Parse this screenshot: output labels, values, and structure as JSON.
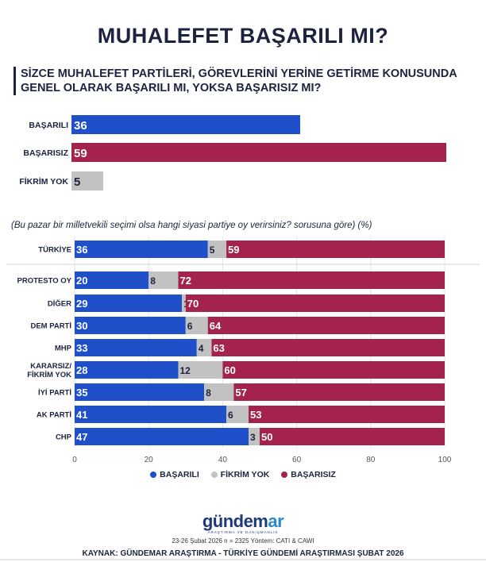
{
  "title": "MUHALEFET BAŞARILI MI?",
  "question": "SİZCE MUHALEFET PARTİLERİ, GÖREVLERİNİ YERİNE GETİRME KONUSUNDA GENEL OLARAK BAŞARILI MI, YOKSA BAŞARISIZ MI?",
  "subtitle": "(Bu pazar bir milletvekili seçimi olsa hangi siyasi partiye oy verirsiniz? sorusuna göre) (%)",
  "colors": {
    "basarili": "#1f4fc9",
    "fikrim_yok": "#c2c2c2",
    "basarisiz": "#a3234c",
    "text": "#1c2340"
  },
  "chart_data": [
    {
      "type": "bar",
      "orientation": "horizontal",
      "categories": [
        "BAŞARILI",
        "BAŞARISIZ",
        "FİKRİM YOK"
      ],
      "values": [
        36,
        59,
        5
      ],
      "xlim": [
        0,
        59
      ]
    },
    {
      "type": "bar",
      "orientation": "horizontal",
      "stacked": true,
      "categories": [
        "TÜRKİYE",
        "PROTESTO OY",
        "DİĞER",
        "DEM PARTİ",
        "MHP",
        "KARARSIZ/ FİKRİM YOK",
        "İYİ PARTİ",
        "AK PARTİ",
        "CHP"
      ],
      "series": [
        {
          "name": "BAŞARILI",
          "values": [
            36,
            20,
            29,
            30,
            33,
            28,
            35,
            41,
            47
          ]
        },
        {
          "name": "FİKRİM YOK",
          "values": [
            5,
            8,
            1,
            6,
            4,
            12,
            8,
            6,
            3
          ]
        },
        {
          "name": "BAŞARISIZ",
          "values": [
            59,
            72,
            70,
            64,
            63,
            60,
            57,
            53,
            50
          ]
        }
      ],
      "xlim": [
        0,
        100
      ],
      "xticks": [
        0,
        20,
        40,
        60,
        80,
        100
      ],
      "grid": true,
      "legend_position": "bottom"
    }
  ],
  "legend": [
    "BAŞARILI",
    "FİKRİM YOK",
    "BAŞARISIZ"
  ],
  "logo": {
    "main_a": "gündem",
    "main_b": "ar",
    "sub": "ARAŞTIRMA VE DANIŞMANLIK"
  },
  "meta": "23-26 Şubat 2026 n = 2325 Yöntem: CATI & CAWI",
  "source": "KAYNAK: GÜNDEMAR ARAŞTIRMA - TÜRKİYE GÜNDEMİ ARAŞTIRMASI ŞUBAT 2026"
}
